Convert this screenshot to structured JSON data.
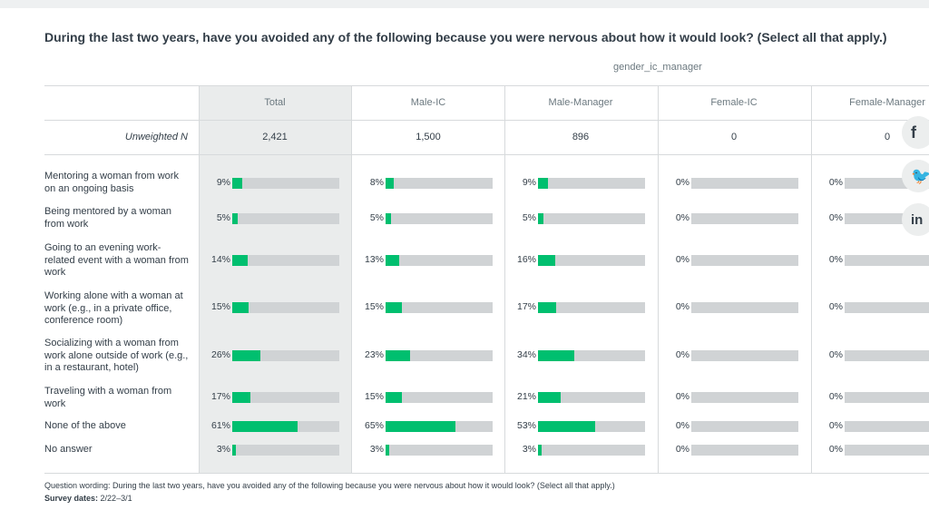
{
  "title": "During the last two years, have you avoided any of the following because you were nervous about how it would look? (Select all that apply.)",
  "group_label": "gender_ic_manager",
  "columns": [
    {
      "name": "Total",
      "n": "2,421"
    },
    {
      "name": "Male-IC",
      "n": "1,500"
    },
    {
      "name": "Male-Manager",
      "n": "896"
    },
    {
      "name": "Female-IC",
      "n": "0"
    },
    {
      "name": "Female-Manager",
      "n": "0"
    }
  ],
  "unweighted_label": "Unweighted N",
  "rows": [
    {
      "label": "Mentoring a woman from work on an ongoing basis",
      "pcts": [
        "9%",
        "8%",
        "9%",
        "0%",
        "0%"
      ],
      "values": [
        9,
        8,
        9,
        0,
        0
      ]
    },
    {
      "label": "Being mentored by a woman from work",
      "pcts": [
        "5%",
        "5%",
        "5%",
        "0%",
        "0%"
      ],
      "values": [
        5,
        5,
        5,
        0,
        0
      ]
    },
    {
      "label": "Going to an evening work-related event with a woman from work",
      "pcts": [
        "14%",
        "13%",
        "16%",
        "0%",
        "0%"
      ],
      "values": [
        14,
        13,
        16,
        0,
        0
      ]
    },
    {
      "label": "Working alone with a woman at work (e.g., in a private office, conference room)",
      "pcts": [
        "15%",
        "15%",
        "17%",
        "0%",
        "0%"
      ],
      "values": [
        15,
        15,
        17,
        0,
        0
      ]
    },
    {
      "label": "Socializing with a woman from work alone outside of work (e.g., in a restaurant, hotel)",
      "pcts": [
        "26%",
        "23%",
        "34%",
        "0%",
        "0%"
      ],
      "values": [
        26,
        23,
        34,
        0,
        0
      ]
    },
    {
      "label": "Traveling with a woman from work",
      "pcts": [
        "17%",
        "15%",
        "21%",
        "0%",
        "0%"
      ],
      "values": [
        17,
        15,
        21,
        0,
        0
      ]
    },
    {
      "label": "None of the above",
      "pcts": [
        "61%",
        "65%",
        "53%",
        "0%",
        "0%"
      ],
      "values": [
        61,
        65,
        53,
        0,
        0
      ]
    },
    {
      "label": "No answer",
      "pcts": [
        "3%",
        "3%",
        "3%",
        "0%",
        "0%"
      ],
      "values": [
        3,
        3,
        3,
        0,
        0
      ]
    }
  ],
  "footer": {
    "wording": "Question wording: During the last two years, have you avoided any of the following because you were nervous about how it would look? (Select all that apply.)",
    "dates_label": "Survey dates:",
    "dates_value": "2/22–3/1"
  },
  "social": [
    {
      "icon": "facebook-icon",
      "glyph": "f"
    },
    {
      "icon": "twitter-icon",
      "glyph": "🐦"
    },
    {
      "icon": "linkedin-icon",
      "glyph": "in"
    }
  ],
  "colors": {
    "bar": "#00bf6f",
    "track": "#d0d3d5",
    "total_bg": "#eaecec"
  }
}
